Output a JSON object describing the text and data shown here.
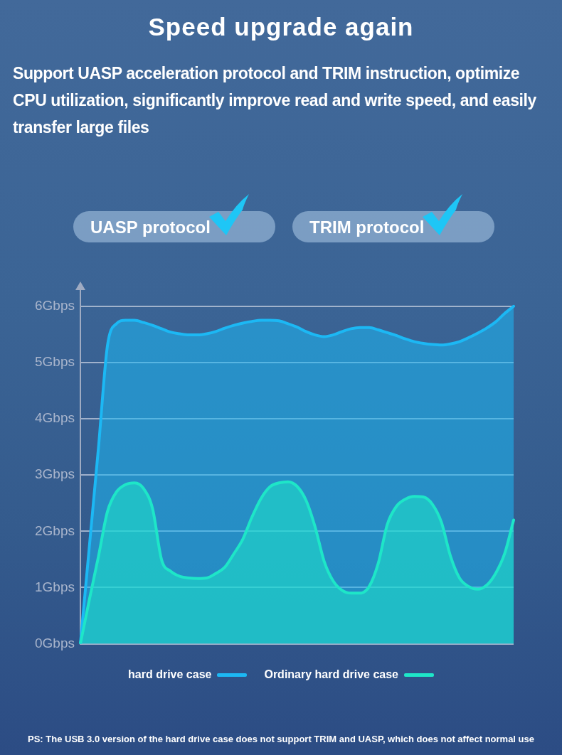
{
  "chart_data": {
    "type": "area",
    "title": "Speed upgrade again",
    "subtitle": "Support UASP acceleration protocol and TRIM instruction, optimize CPU utilization, significantly improve read and write speed, and easily transfer large files",
    "annotations": [
      "UASP protocol",
      "TRIM protocol",
      "PS: The USB 3.0 version of the hard drive case does not support TRIM and UASP, which does not affect normal use"
    ],
    "categories": [
      null,
      null,
      null,
      null,
      null,
      null,
      null,
      null,
      null,
      null,
      null,
      null,
      null,
      null,
      null,
      null,
      null,
      null,
      null,
      null,
      null,
      null,
      null,
      null,
      null,
      null,
      null,
      null,
      null,
      null,
      null,
      null,
      null,
      null,
      null,
      null,
      null,
      null,
      null,
      null,
      null,
      null,
      null,
      null,
      null,
      null,
      null,
      null,
      null
    ],
    "series": [
      {
        "name": "hard drive case",
        "color": "#1cb8f4",
        "values": [
          0,
          1.74,
          3.48,
          5.3,
          5.69,
          5.75,
          5.75,
          5.71,
          5.66,
          5.6,
          5.54,
          5.51,
          5.49,
          5.49,
          5.51,
          5.55,
          5.61,
          5.66,
          5.7,
          5.73,
          5.75,
          5.75,
          5.74,
          5.69,
          5.63,
          5.55,
          5.49,
          5.46,
          5.49,
          5.55,
          5.6,
          5.62,
          5.62,
          5.58,
          5.53,
          5.48,
          5.42,
          5.37,
          5.34,
          5.32,
          5.31,
          5.33,
          5.37,
          5.44,
          5.52,
          5.61,
          5.72,
          5.87,
          6.0
        ]
      },
      {
        "name": "Ordinary hard drive case",
        "color": "#1ee6c8",
        "values": [
          0,
          0.79,
          1.55,
          2.35,
          2.7,
          2.83,
          2.86,
          2.76,
          2.4,
          1.49,
          1.29,
          1.2,
          1.17,
          1.16,
          1.17,
          1.25,
          1.36,
          1.6,
          1.86,
          2.25,
          2.58,
          2.79,
          2.86,
          2.88,
          2.8,
          2.55,
          2.08,
          1.47,
          1.12,
          0.95,
          0.9,
          0.9,
          1.02,
          1.43,
          2.12,
          2.44,
          2.57,
          2.62,
          2.61,
          2.48,
          2.16,
          1.56,
          1.17,
          1.02,
          0.97,
          1.04,
          1.25,
          1.6,
          2.2
        ]
      }
    ],
    "ylim": [
      0,
      6.3
    ],
    "yticks": [
      {
        "value": 0,
        "label": "0Gbps"
      },
      {
        "value": 1,
        "label": "1Gbps"
      },
      {
        "value": 2,
        "label": "2Gbps"
      },
      {
        "value": 3,
        "label": "3Gbps"
      },
      {
        "value": 4,
        "label": "4Gbps"
      },
      {
        "value": 5,
        "label": "5Gbps"
      },
      {
        "value": 6,
        "label": "6Gbps"
      }
    ],
    "grid": "y",
    "tick_labels": "y",
    "legend": "bottom"
  }
}
